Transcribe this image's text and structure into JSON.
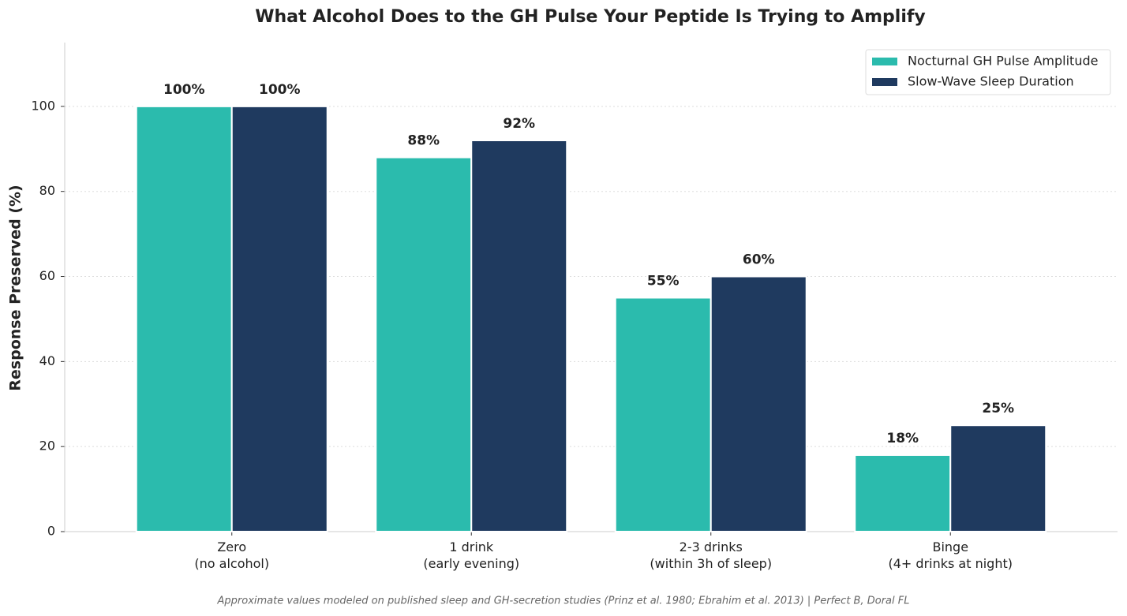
{
  "chart_data": {
    "type": "bar",
    "title": "What Alcohol Does to the GH Pulse Your Peptide Is Trying to Amplify",
    "y_label": "Response Preserved (%)",
    "categories": [
      "Zero\n(no alcohol)",
      "1 drink\n(early evening)",
      "2-3 drinks\n(within 3h of sleep)",
      "Binge\n(4+ drinks at night)"
    ],
    "series": [
      {
        "name": "Nocturnal GH Pulse Amplitude",
        "color": "#2bbbad",
        "values": [
          100,
          88,
          55,
          18
        ],
        "value_labels": [
          "100%",
          "88%",
          "55%",
          "18%"
        ]
      },
      {
        "name": "Slow-Wave Sleep Duration",
        "color": "#1f3a5f",
        "values": [
          100,
          92,
          60,
          25
        ],
        "value_labels": [
          "100%",
          "92%",
          "60%",
          "25%"
        ]
      }
    ],
    "ylim": [
      0,
      115
    ],
    "yticks": [
      0,
      20,
      40,
      60,
      80,
      100
    ],
    "grid": true,
    "legend": "upper right",
    "footnote": "Approximate values modeled on published sleep and GH-secretion studies (Prinz et al. 1980; Ebrahim et al. 2013) | Perfect B, Doral FL"
  }
}
